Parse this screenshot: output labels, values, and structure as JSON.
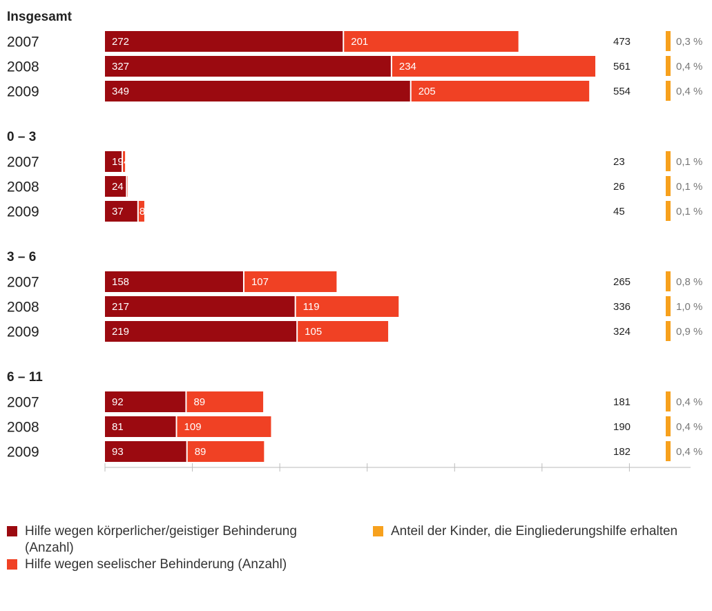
{
  "chart_data": {
    "type": "stacked-bar-horizontal",
    "series": [
      {
        "name": "Hilfe wegen körperlicher/geistiger Behinderung (Anzahl)",
        "color": "#9b0a10"
      },
      {
        "name": "Hilfe wegen seelischer Behinderung (Anzahl)",
        "color": "#f04124"
      },
      {
        "name": "Anteil der Kinder, die Eingliederungshilfe erhalten",
        "color": "#f7a11d"
      }
    ],
    "groups": [
      {
        "title": "Insgesamt",
        "categories": [
          "2007",
          "2008",
          "2009"
        ],
        "values": [
          [
            272,
            327,
            349
          ],
          [
            201,
            234,
            205
          ]
        ],
        "totals": [
          473,
          561,
          554
        ],
        "shares": [
          0.3,
          0.4,
          0.4
        ],
        "share_labels": [
          "0,3 %",
          "0,4 %",
          "0,4 %"
        ]
      },
      {
        "title": "0 – 3",
        "categories": [
          "2007",
          "2008",
          "2009"
        ],
        "values": [
          [
            19,
            24,
            37
          ],
          [
            4,
            2,
            8
          ]
        ],
        "totals": [
          23,
          26,
          45
        ],
        "shares": [
          0.1,
          0.1,
          0.1
        ],
        "share_labels": [
          "0,1 %",
          "0,1 %",
          "0,1 %"
        ]
      },
      {
        "title": "3 – 6",
        "categories": [
          "2007",
          "2008",
          "2009"
        ],
        "values": [
          [
            158,
            217,
            219
          ],
          [
            107,
            119,
            105
          ]
        ],
        "totals": [
          265,
          336,
          324
        ],
        "shares": [
          0.8,
          1.0,
          0.9
        ],
        "share_labels": [
          "0,8 %",
          "1,0 %",
          "0,9 %"
        ]
      },
      {
        "title": "6 – 11",
        "categories": [
          "2007",
          "2008",
          "2009"
        ],
        "values": [
          [
            92,
            81,
            93
          ],
          [
            89,
            109,
            89
          ]
        ],
        "totals": [
          181,
          190,
          182
        ],
        "shares": [
          0.4,
          0.4,
          0.4
        ],
        "share_labels": [
          "0,4 %",
          "0,4 %",
          "0,4 %"
        ]
      }
    ],
    "xlim": [
      0,
      670
    ],
    "xticks": [
      100,
      200,
      300,
      400,
      500,
      600
    ]
  }
}
